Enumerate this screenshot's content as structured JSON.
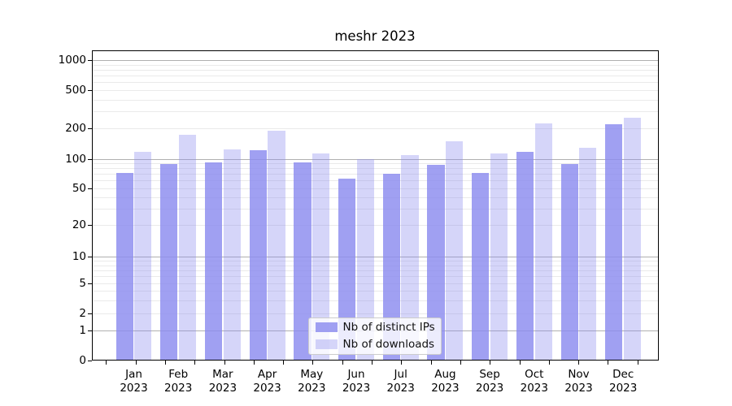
{
  "chart_data": {
    "type": "bar",
    "title": "meshr 2023",
    "categories": [
      "Jan 2023",
      "Feb 2023",
      "Mar 2023",
      "Apr 2023",
      "May 2023",
      "Jun 2023",
      "Jul 2023",
      "Aug 2023",
      "Sep 2023",
      "Oct 2023",
      "Nov 2023",
      "Dec 2023"
    ],
    "series": [
      {
        "name": "Nb of distinct IPs",
        "color": "#8b8bef",
        "alpha": 0.82,
        "values": [
          72,
          89,
          93,
          121,
          93,
          63,
          70,
          87,
          72,
          117,
          88,
          221
        ]
      },
      {
        "name": "Nb of downloads",
        "color": "#8b8bef",
        "alpha": 0.36,
        "values": [
          117,
          174,
          125,
          191,
          114,
          100,
          110,
          150,
          113,
          224,
          128,
          258
        ]
      }
    ],
    "xlabel": "",
    "ylabel": "",
    "yscale": "symlog",
    "y_tick_labels": [
      "0",
      "1",
      "2",
      "5",
      "10",
      "20",
      "50",
      "100",
      "200",
      "500",
      "1000"
    ],
    "ylim": [
      0,
      1500
    ],
    "grid": "horizontal",
    "legend_position": "lower center"
  },
  "legend": {
    "items": [
      {
        "label": "Nb of distinct IPs"
      },
      {
        "label": "Nb of downloads"
      }
    ]
  },
  "colors": {
    "background": "#ffffff",
    "major_grid": "#b0b0b0",
    "minor_grid": "#eaeaea",
    "axis": "#000000",
    "bar_base": "#8b8bef"
  }
}
